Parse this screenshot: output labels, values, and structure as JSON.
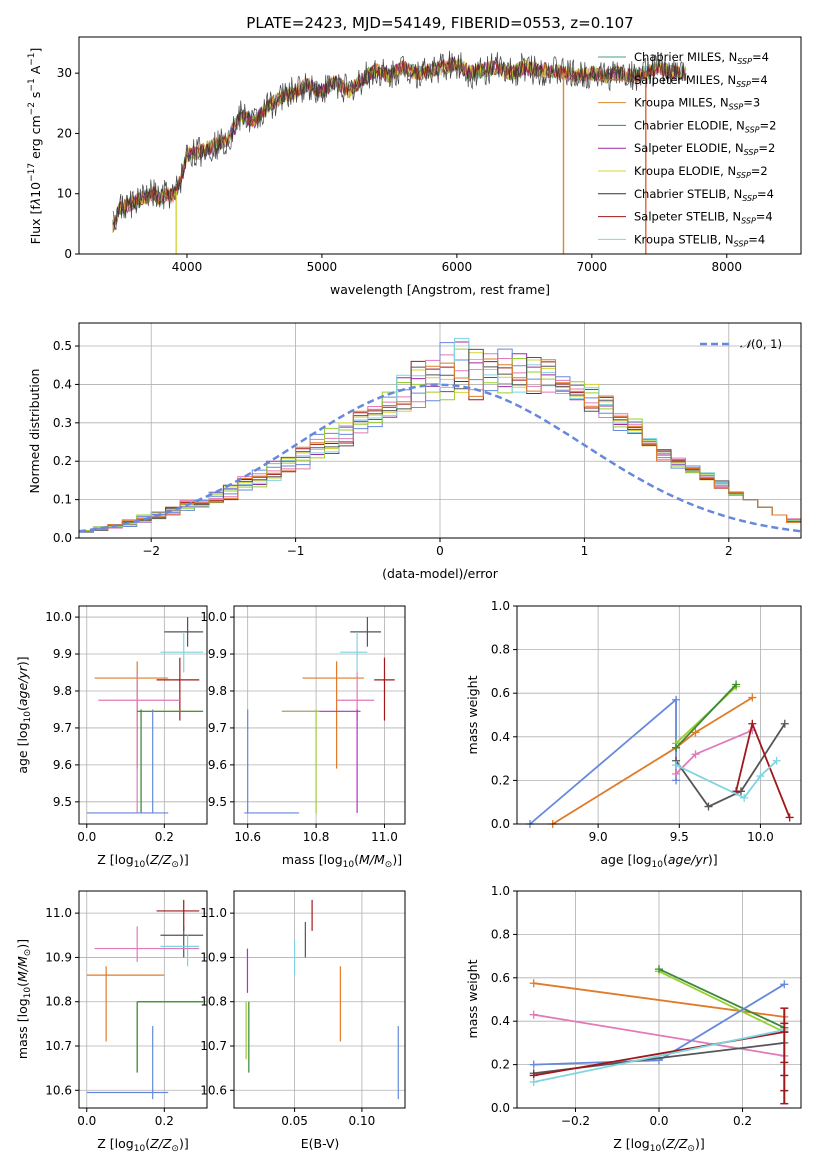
{
  "chart_data": [
    {
      "type": "line",
      "title": "PLATE=2423, MJD=54149, FIBERID=0553, z=0.107",
      "xlabel": "wavelength [Angstrom, rest frame]",
      "ylabel": "Flux [f_λ10^-17 erg cm^-2 s^-1 A^-1]",
      "xlim": [
        3200,
        8550
      ],
      "ylim": [
        0,
        36
      ],
      "xticks": [
        "4000",
        "5000",
        "6000",
        "7000",
        "8000"
      ],
      "yticks": [
        "0",
        "10",
        "20",
        "30"
      ],
      "grid": false,
      "legend": "top-right",
      "series": [
        {
          "name": "Chabrier MILES, N_SSP=4",
          "color": "#4c9a8c"
        },
        {
          "name": "Salpeter MILES, N_SSP=4",
          "color": "#e0603a"
        },
        {
          "name": "Kroupa MILES, N_SSP=3",
          "color": "#d98a2e"
        },
        {
          "name": "Chabrier ELODIE, N_SSP=2",
          "color": "#3f8a3f"
        },
        {
          "name": "Salpeter ELODIE, N_SSP=2",
          "color": "#a02aa8"
        },
        {
          "name": "Kroupa ELODIE, N_SSP=2",
          "color": "#d6d43a"
        },
        {
          "name": "Chabrier STELIB, N_SSP=4",
          "color": "#333333"
        },
        {
          "name": "Salpeter STELIB, N_SSP=4",
          "color": "#a0181c"
        },
        {
          "name": "Kroupa STELIB, N_SSP=4",
          "color": "#7fd4e0"
        }
      ],
      "spectrum": {
        "x": [
          3450,
          3500,
          3550,
          3600,
          3650,
          3700,
          3750,
          3800,
          3850,
          3900,
          3950,
          4000,
          4100,
          4200,
          4300,
          4400,
          4500,
          4600,
          4700,
          4800,
          4900,
          5000,
          5100,
          5200,
          5300,
          5400,
          5500,
          5600,
          5700,
          5800,
          5900,
          6000,
          6100,
          6200,
          6300,
          6400,
          6500,
          6600,
          6700,
          6800,
          6900,
          7000,
          7100,
          7200,
          7300,
          7400,
          7500,
          7600,
          7700
        ],
        "y": [
          4.5,
          7.5,
          8,
          8.5,
          9,
          9.5,
          10,
          9,
          10,
          9.5,
          12,
          16.5,
          17,
          18,
          19,
          23,
          22,
          24.5,
          26,
          27,
          28,
          27,
          28.5,
          27,
          29,
          30.5,
          29.5,
          31,
          30,
          30.5,
          31,
          31.5,
          30,
          30.5,
          31,
          30,
          31,
          30.5,
          30.5,
          30,
          29.5,
          30,
          29.5,
          30,
          29.5,
          30,
          31,
          30,
          30
        ]
      },
      "dropouts": [
        {
          "x": 3920,
          "y": 0
        },
        {
          "x": 6790,
          "y": 0
        },
        {
          "x": 7400,
          "y": 0
        }
      ]
    },
    {
      "type": "histogram",
      "xlabel": "(data-model)/error",
      "ylabel": "Normed distribution",
      "xlim": [
        -2.5,
        2.5
      ],
      "ylim": [
        0,
        0.56
      ],
      "xticks": [
        "−2",
        "−1",
        "0",
        "1",
        "2"
      ],
      "yticks": [
        "0.0",
        "0.1",
        "0.2",
        "0.3",
        "0.4",
        "0.5"
      ],
      "grid": true,
      "legend": "top-right",
      "legend_label": "N(0,1)",
      "bin_width": 0.1,
      "bin_start": -2.5,
      "envelope_low": [
        0.015,
        0.02,
        0.025,
        0.03,
        0.04,
        0.05,
        0.06,
        0.07,
        0.08,
        0.09,
        0.1,
        0.12,
        0.13,
        0.15,
        0.17,
        0.18,
        0.2,
        0.22,
        0.24,
        0.27,
        0.29,
        0.31,
        0.33,
        0.34,
        0.35,
        0.36,
        0.37,
        0.36,
        0.37,
        0.37,
        0.38,
        0.37,
        0.38,
        0.37,
        0.36,
        0.33,
        0.31,
        0.28,
        0.27,
        0.24,
        0.2,
        0.18,
        0.17,
        0.15,
        0.13,
        0.11,
        0.1,
        0.08,
        0.06,
        0.05
      ],
      "envelope_high": [
        0.02,
        0.03,
        0.035,
        0.05,
        0.06,
        0.07,
        0.08,
        0.1,
        0.1,
        0.12,
        0.14,
        0.16,
        0.18,
        0.2,
        0.21,
        0.24,
        0.27,
        0.29,
        0.3,
        0.33,
        0.35,
        0.38,
        0.43,
        0.46,
        0.47,
        0.53,
        0.52,
        0.5,
        0.48,
        0.5,
        0.48,
        0.47,
        0.47,
        0.42,
        0.41,
        0.4,
        0.37,
        0.33,
        0.31,
        0.26,
        0.23,
        0.21,
        0.19,
        0.17,
        0.15,
        0.12,
        0.1,
        0.08,
        0.06,
        0.04
      ],
      "gaussian": {
        "mean": 0,
        "sigma": 1
      }
    },
    {
      "type": "scatter",
      "xlabel": "Z [log10(Z/Z⊙)]",
      "ylabel": "age  [log10(age/yr)]",
      "xlim": [
        -0.02,
        0.31
      ],
      "ylim": [
        9.44,
        10.03
      ],
      "xticks": [
        "0.0",
        "0.2"
      ],
      "yticks": [
        "9.5",
        "9.6",
        "9.7",
        "9.8",
        "9.9",
        "10.0"
      ],
      "grid": true,
      "points": [
        {
          "x": 0.26,
          "y": 9.96,
          "xerr": [
            0.2,
            0.3
          ],
          "yerr": [
            9.92,
            10.0
          ],
          "color": "#555555"
        },
        {
          "x": 0.25,
          "y": 9.905,
          "xerr": [
            0.19,
            0.3
          ],
          "yerr": [
            9.85,
            9.96
          ],
          "color": "#7fd4e0"
        },
        {
          "x": 0.24,
          "y": 9.83,
          "xerr": [
            0.18,
            0.29
          ],
          "yerr": [
            9.72,
            9.89
          ],
          "color": "#a0181c"
        },
        {
          "x": 0.13,
          "y": 9.835,
          "xerr": [
            0.02,
            0.21
          ],
          "yerr": [
            9.59,
            9.88
          ],
          "color": "#e07b28"
        },
        {
          "x": 0.13,
          "y": 9.775,
          "xerr": [
            0.03,
            0.24
          ],
          "yerr": [
            9.47,
            9.85
          ],
          "color": "#e07ab8"
        },
        {
          "x": 0.14,
          "y": 9.745,
          "xerr": [
            0.13,
            0.3
          ],
          "yerr": [
            9.47,
            9.75
          ],
          "color": "#9acd32"
        },
        {
          "x": 0.14,
          "y": 9.745,
          "xerr": [
            0.13,
            0.3
          ],
          "yerr": [
            9.47,
            9.75
          ],
          "color": "#3a8a3a"
        },
        {
          "x": 0.17,
          "y": 9.47,
          "xerr": [
            0.0,
            0.21
          ],
          "yerr": [
            9.47,
            9.75
          ],
          "color": "#6688dd"
        }
      ]
    },
    {
      "type": "scatter",
      "xlabel": "mass [log10(M/M⊙)]",
      "xlim": [
        10.56,
        11.06
      ],
      "ylim": [
        9.44,
        10.03
      ],
      "xticks": [
        "10.6",
        "10.8",
        "11.0"
      ],
      "yticks": [
        "9.5",
        "9.6",
        "9.7",
        "9.8",
        "9.9",
        "10.0"
      ],
      "grid": true,
      "points": [
        {
          "x": 10.95,
          "y": 9.96,
          "xerr": [
            10.9,
            10.99
          ],
          "yerr": [
            9.92,
            10.0
          ],
          "color": "#555555"
        },
        {
          "x": 10.92,
          "y": 9.905,
          "xerr": [
            10.87,
            10.95
          ],
          "yerr": [
            9.85,
            9.96
          ],
          "color": "#7fd4e0"
        },
        {
          "x": 11.0,
          "y": 9.83,
          "xerr": [
            10.97,
            11.03
          ],
          "yerr": [
            9.72,
            9.89
          ],
          "color": "#a0181c"
        },
        {
          "x": 10.86,
          "y": 9.835,
          "xerr": [
            10.76,
            10.94
          ],
          "yerr": [
            9.59,
            9.88
          ],
          "color": "#e07b28"
        },
        {
          "x": 10.92,
          "y": 9.775,
          "xerr": [
            10.86,
            10.97
          ],
          "yerr": [
            9.72,
            9.85
          ],
          "color": "#e07ab8"
        },
        {
          "x": 10.92,
          "y": 9.745,
          "xerr": [
            10.7,
            10.93
          ],
          "yerr": [
            9.47,
            9.75
          ],
          "color": "#b52fc2"
        },
        {
          "x": 10.8,
          "y": 9.745,
          "xerr": [
            10.7,
            10.81
          ],
          "yerr": [
            9.47,
            9.75
          ],
          "color": "#9acd32"
        },
        {
          "x": 10.6,
          "y": 9.47,
          "xerr": [
            10.59,
            10.75
          ],
          "yerr": [
            9.47,
            9.75
          ],
          "color": "#6688dd"
        }
      ]
    },
    {
      "type": "line",
      "xlabel": "age  [log10(age/yr)]",
      "ylabel": "mass weight",
      "xlim": [
        8.5,
        10.25
      ],
      "ylim": [
        0,
        1
      ],
      "xticks": [
        "9.0",
        "9.5",
        "10.0"
      ],
      "yticks": [
        "0.0",
        "0.2",
        "0.4",
        "0.6",
        "0.8",
        "1.0"
      ],
      "grid": true,
      "series": [
        {
          "color": "#6688dd",
          "points": [
            [
              8.58,
              0.0
            ],
            [
              9.48,
              0.57
            ],
            [
              9.48,
              0.35
            ],
            [
              9.48,
              0.2
            ]
          ]
        },
        {
          "color": "#e07b28",
          "points": [
            [
              8.72,
              0.0
            ],
            [
              9.48,
              0.35
            ],
            [
              9.6,
              0.42
            ],
            [
              9.95,
              0.58
            ]
          ]
        },
        {
          "color": "#e07ab8",
          "points": [
            [
              9.48,
              0.23
            ],
            [
              9.6,
              0.32
            ],
            [
              9.95,
              0.43
            ]
          ]
        },
        {
          "color": "#9acd32",
          "points": [
            [
              9.48,
              0.37
            ],
            [
              9.85,
              0.63
            ]
          ]
        },
        {
          "color": "#3a8a3a",
          "points": [
            [
              9.48,
              0.35
            ],
            [
              9.85,
              0.64
            ]
          ]
        },
        {
          "color": "#555555",
          "points": [
            [
              9.48,
              0.29
            ],
            [
              9.68,
              0.08
            ],
            [
              9.88,
              0.15
            ],
            [
              10.15,
              0.46
            ]
          ]
        },
        {
          "color": "#a0181c",
          "points": [
            [
              9.85,
              0.15
            ],
            [
              9.95,
              0.46
            ],
            [
              10.18,
              0.03
            ]
          ]
        },
        {
          "color": "#7fd4e0",
          "points": [
            [
              9.48,
              0.27
            ],
            [
              9.9,
              0.12
            ],
            [
              10.0,
              0.22
            ],
            [
              10.1,
              0.29
            ]
          ]
        }
      ]
    },
    {
      "type": "scatter",
      "xlabel": "Z [log10(Z/Z⊙)]",
      "ylabel": "mass [log10(M/M⊙)]",
      "xlim": [
        -0.02,
        0.31
      ],
      "ylim": [
        10.56,
        11.05
      ],
      "xticks": [
        "0.0",
        "0.2"
      ],
      "yticks": [
        "10.6",
        "10.7",
        "10.8",
        "10.9",
        "11.0"
      ],
      "grid": true,
      "points": [
        {
          "x": 0.25,
          "y": 11.005,
          "xerr": [
            0.18,
            0.29
          ],
          "yerr": [
            10.96,
            11.03
          ],
          "color": "#a0181c"
        },
        {
          "x": 0.25,
          "y": 10.95,
          "xerr": [
            0.19,
            0.3
          ],
          "yerr": [
            10.9,
            10.97
          ],
          "color": "#555555"
        },
        {
          "x": 0.26,
          "y": 10.925,
          "xerr": [
            0.19,
            0.29
          ],
          "yerr": [
            10.88,
            10.95
          ],
          "color": "#7fd4e0"
        },
        {
          "x": 0.13,
          "y": 10.92,
          "xerr": [
            0.02,
            0.29
          ],
          "yerr": [
            10.89,
            10.97
          ],
          "color": "#e07ab8"
        },
        {
          "x": 0.05,
          "y": 10.86,
          "xerr": [
            0.0,
            0.2
          ],
          "yerr": [
            10.71,
            10.88
          ],
          "color": "#e07b28"
        },
        {
          "x": 0.13,
          "y": 10.8,
          "xerr": [
            0.13,
            0.3
          ],
          "yerr": [
            10.64,
            10.8
          ],
          "color": "#9acd32"
        },
        {
          "x": 0.13,
          "y": 10.8,
          "xerr": [
            0.13,
            0.3
          ],
          "yerr": [
            10.64,
            10.8
          ],
          "color": "#3a8a3a"
        },
        {
          "x": 0.17,
          "y": 10.595,
          "xerr": [
            0.0,
            0.21
          ],
          "yerr": [
            10.58,
            10.745
          ],
          "color": "#6688dd"
        }
      ]
    },
    {
      "type": "scatter",
      "xlabel": "E(B-V)",
      "xlim": [
        0.005,
        0.132
      ],
      "ylim": [
        10.56,
        11.05
      ],
      "xticks": [
        "0.05",
        "0.10"
      ],
      "yticks": [
        "10.6",
        "10.7",
        "10.8",
        "10.9",
        "11.0"
      ],
      "grid": true,
      "segments": [
        {
          "x": 0.063,
          "yerr": [
            10.96,
            11.03
          ],
          "color": "#a0181c"
        },
        {
          "x": 0.058,
          "yerr": [
            10.9,
            10.98
          ],
          "color": "#555555"
        },
        {
          "x": 0.05,
          "yerr": [
            10.86,
            10.94
          ],
          "color": "#7fd4e0"
        },
        {
          "x": 0.084,
          "yerr": [
            10.71,
            10.88
          ],
          "color": "#e07b28"
        },
        {
          "x": 0.015,
          "yerr": [
            10.82,
            10.92
          ],
          "color": "#b52fc2"
        },
        {
          "x": 0.016,
          "yerr": [
            10.64,
            10.8
          ],
          "color": "#3a8a3a"
        },
        {
          "x": 0.014,
          "yerr": [
            10.67,
            10.8
          ],
          "color": "#9acd32"
        },
        {
          "x": 0.127,
          "yerr": [
            10.58,
            10.745
          ],
          "color": "#6688dd"
        }
      ]
    },
    {
      "type": "line",
      "xlabel": "Z [log10(Z/Z⊙)]",
      "ylabel": "mass weight",
      "xlim": [
        -0.34,
        0.34
      ],
      "ylim": [
        0,
        1
      ],
      "xticks": [
        "−0.2",
        "0.0",
        "0.2"
      ],
      "yticks": [
        "0.0",
        "0.2",
        "0.4",
        "0.6",
        "0.8",
        "1.0"
      ],
      "grid": true,
      "series": [
        {
          "color": "#e07b28",
          "points": [
            [
              -0.3,
              0.575
            ],
            [
              0.3,
              0.42
            ]
          ]
        },
        {
          "color": "#e07ab8",
          "points": [
            [
              -0.3,
              0.43
            ],
            [
              0.3,
              0.24
            ]
          ]
        },
        {
          "color": "#9acd32",
          "points": [
            [
              0.0,
              0.63
            ],
            [
              0.3,
              0.35
            ]
          ]
        },
        {
          "color": "#3a8a3a",
          "points": [
            [
              0.0,
              0.64
            ],
            [
              0.3,
              0.37
            ]
          ]
        },
        {
          "color": "#6688dd",
          "points": [
            [
              -0.3,
              0.2
            ],
            [
              0.0,
              0.22
            ],
            [
              0.3,
              0.57
            ]
          ]
        },
        {
          "color": "#555555",
          "points": [
            [
              -0.3,
              0.16
            ],
            [
              0.3,
              0.3
            ]
          ]
        },
        {
          "color": "#a0181c",
          "points": [
            [
              -0.3,
              0.15
            ],
            [
              0.3,
              0.35
            ]
          ]
        },
        {
          "color": "#7fd4e0",
          "points": [
            [
              -0.3,
              0.12
            ],
            [
              0.3,
              0.36
            ]
          ]
        }
      ],
      "stacked_markers": {
        "x": 0.3,
        "color": "#a0181c",
        "y": [
          0.02,
          0.08,
          0.15,
          0.21,
          0.35,
          0.39,
          0.46
        ]
      }
    }
  ]
}
